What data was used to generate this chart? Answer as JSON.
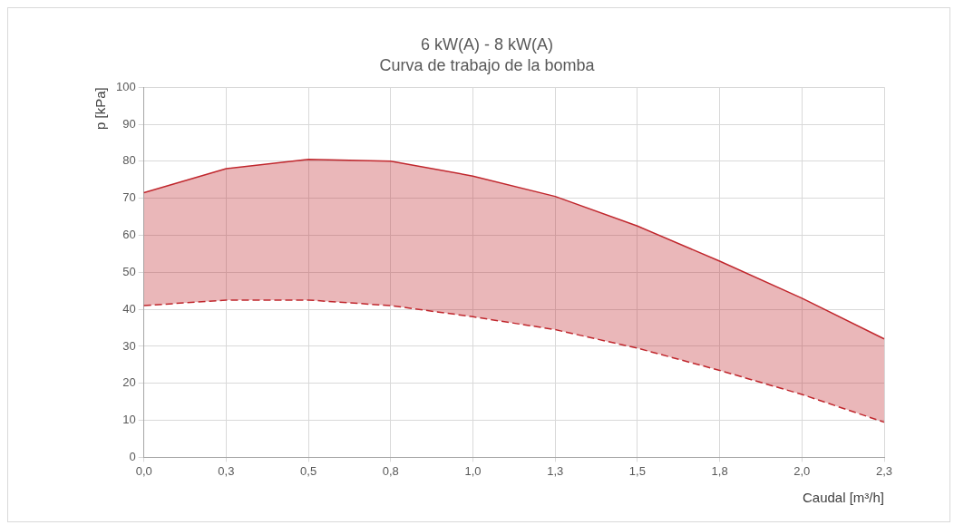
{
  "chart_data": {
    "type": "line",
    "title": "6 kW(A) - 8 kW(A)",
    "subtitle": "Curva de trabajo de la bomba",
    "xlabel": "Caudal [m³/h]",
    "ylabel": "p [kPa]",
    "categories": [
      "0,0",
      "0,3",
      "0,5",
      "0,8",
      "1,0",
      "1,3",
      "1,5",
      "1,8",
      "2,0",
      "2,3"
    ],
    "series": [
      {
        "color": "#c0272d",
        "line_style": "solid",
        "values": [
          71.5,
          78,
          80.5,
          80,
          76,
          70.5,
          62.5,
          53,
          43,
          32
        ],
        "lower": [
          41,
          42.5,
          42.5,
          41,
          38,
          34.5,
          29.5,
          23.5,
          17,
          9.5
        ],
        "upper": [
          71.5,
          78,
          80.5,
          80,
          76,
          70.5,
          62.5,
          53,
          43,
          32
        ]
      },
      {
        "color": "#c0272d",
        "line_style": "dashed",
        "values": [
          41,
          42.5,
          42.5,
          41,
          38,
          34.5,
          29.5,
          23.5,
          17,
          9.5
        ]
      }
    ],
    "ylim": [
      0,
      100
    ],
    "yticks": [
      0,
      10,
      20,
      30,
      40,
      50,
      60,
      70,
      80,
      90,
      100
    ],
    "grid": true,
    "legend": false,
    "marker": "none"
  }
}
